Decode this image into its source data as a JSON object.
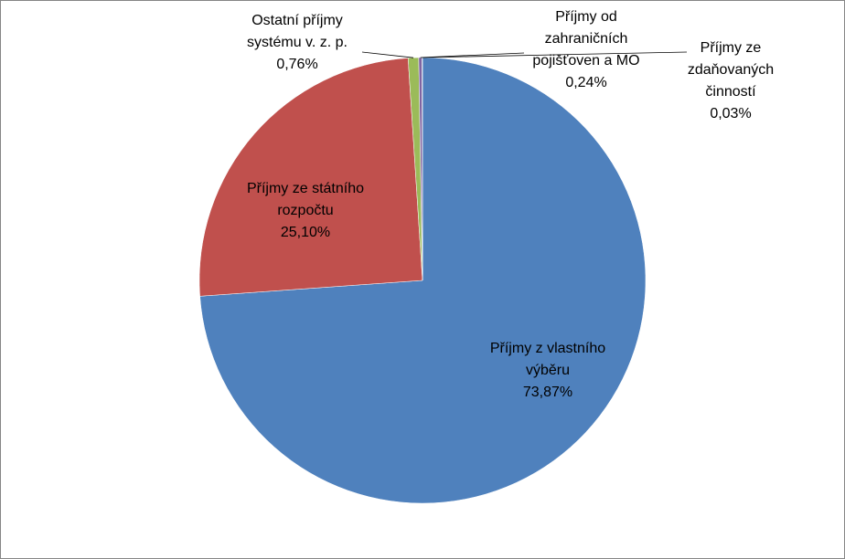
{
  "chart_data": {
    "type": "pie",
    "series": [
      {
        "values": [
          73.87,
          25.1,
          0.76,
          0.24,
          0.03
        ]
      }
    ],
    "categories": [
      "Příjmy z vlastního výběru",
      "Příjmy ze státního rozpočtu",
      "Ostatní příjmy systému v. z. p.",
      "Příjmy od zahraničních pojišťoven a MO",
      "Příjmy ze zdaňovaných činností"
    ],
    "slices": [
      {
        "label_lines": [
          "Příjmy z vlastního",
          "výběru"
        ],
        "percent_label": "73,87%",
        "value": 73.87,
        "color": "#4f81bd"
      },
      {
        "label_lines": [
          "Příjmy ze státního",
          "rozpočtu"
        ],
        "percent_label": "25,10%",
        "value": 25.1,
        "color": "#c0504d"
      },
      {
        "label_lines": [
          "Ostatní příjmy",
          "systému v. z. p."
        ],
        "percent_label": "0,76%",
        "value": 0.76,
        "color": "#9bbb59"
      },
      {
        "label_lines": [
          "Příjmy od",
          "zahraničních",
          "pojišťoven a MO"
        ],
        "percent_label": "0,24%",
        "value": 0.24,
        "color": "#8064a2"
      },
      {
        "label_lines": [
          "Příjmy ze",
          "zdaňovaných",
          "činností"
        ],
        "percent_label": "0,03%",
        "value": 0.03,
        "color": "#4bacc6"
      }
    ],
    "legend": "none",
    "title": ""
  }
}
